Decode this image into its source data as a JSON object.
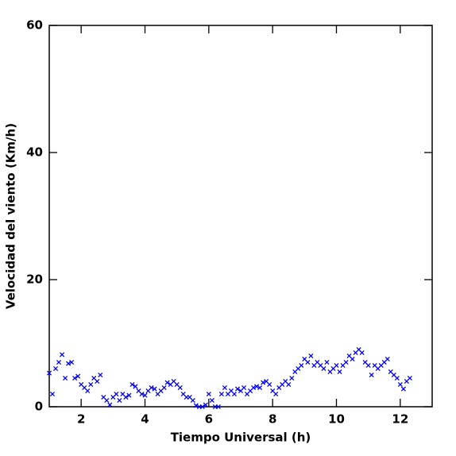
{
  "chart_data": {
    "type": "scatter",
    "x_label": "Tiempo Universal (h)",
    "y_label": "Velocidad del viento (Km/h)",
    "xlim": [
      1,
      13
    ],
    "ylim": [
      0,
      60
    ],
    "xticks": [
      2,
      4,
      6,
      8,
      10,
      12
    ],
    "yticks": [
      0,
      20,
      40,
      60
    ],
    "series": [
      {
        "color": "#0000ff",
        "x": [
          1.0,
          1.1,
          1.2,
          1.3,
          1.4,
          1.5,
          1.6,
          1.7,
          1.8,
          1.9,
          2.0,
          2.1,
          2.2,
          2.3,
          2.4,
          2.5,
          2.6,
          2.7,
          2.8,
          2.9,
          3.0,
          3.1,
          3.2,
          3.3,
          3.4,
          3.5,
          3.6,
          3.7,
          3.8,
          3.9,
          4.0,
          4.1,
          4.2,
          4.3,
          4.4,
          4.5,
          4.6,
          4.7,
          4.8,
          4.9,
          5.0,
          5.1,
          5.2,
          5.3,
          5.4,
          5.5,
          5.6,
          5.7,
          5.8,
          5.9,
          6.0,
          6.1,
          6.2,
          6.3,
          6.4,
          6.5,
          6.6,
          6.7,
          6.8,
          6.9,
          7.0,
          7.1,
          7.2,
          7.3,
          7.4,
          7.5,
          7.6,
          7.7,
          7.8,
          7.9,
          8.0,
          8.1,
          8.2,
          8.3,
          8.4,
          8.5,
          8.6,
          8.7,
          8.8,
          8.9,
          9.0,
          9.1,
          9.2,
          9.3,
          9.4,
          9.5,
          9.6,
          9.7,
          9.8,
          9.9,
          10.0,
          10.1,
          10.2,
          10.3,
          10.4,
          10.5,
          10.6,
          10.7,
          10.8,
          10.9,
          11.0,
          11.1,
          11.2,
          11.3,
          11.4,
          11.5,
          11.6,
          11.7,
          11.8,
          11.9,
          12.0,
          12.1,
          12.2,
          12.3
        ],
        "values": [
          5.3,
          2.0,
          6.0,
          7.0,
          8.2,
          4.5,
          6.8,
          7.0,
          4.5,
          4.8,
          3.5,
          3.0,
          2.5,
          3.5,
          4.5,
          4.0,
          5.0,
          1.5,
          1.0,
          0.3,
          1.5,
          2.0,
          1.0,
          2.0,
          1.5,
          1.8,
          3.5,
          3.2,
          2.5,
          2.0,
          1.8,
          2.5,
          3.0,
          2.8,
          2.0,
          2.5,
          3.0,
          3.8,
          3.5,
          4.0,
          3.5,
          3.0,
          2.0,
          1.5,
          1.5,
          1.0,
          0.2,
          0.0,
          0.0,
          0.3,
          2.0,
          1.0,
          0.0,
          0.0,
          2.0,
          3.0,
          2.0,
          2.5,
          2.0,
          2.8,
          2.5,
          3.0,
          2.0,
          2.5,
          3.0,
          3.2,
          3.0,
          3.8,
          4.0,
          3.5,
          2.5,
          2.0,
          3.0,
          3.5,
          4.0,
          3.5,
          4.5,
          5.5,
          6.0,
          6.5,
          7.5,
          7.0,
          8.0,
          6.5,
          7.0,
          6.5,
          6.0,
          7.0,
          5.5,
          6.0,
          6.5,
          5.5,
          6.5,
          7.0,
          8.0,
          7.5,
          8.5,
          9.0,
          8.5,
          7.0,
          6.5,
          5.0,
          6.5,
          6.0,
          6.5,
          7.0,
          7.5,
          5.5,
          5.0,
          4.5,
          3.5,
          2.8,
          4.0,
          4.5
        ]
      }
    ]
  }
}
